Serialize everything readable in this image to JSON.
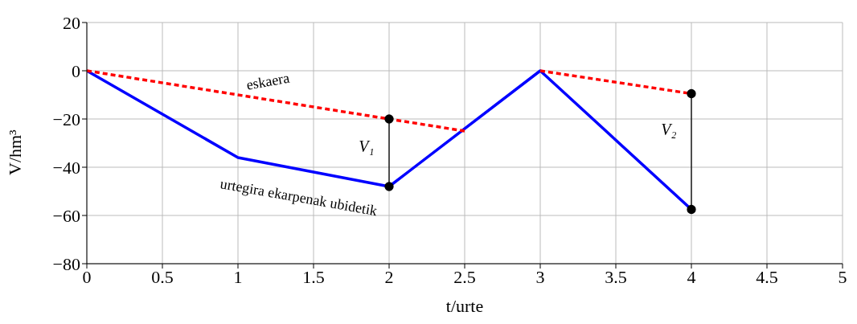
{
  "chart_data": {
    "type": "line",
    "xlabel": "t/urte",
    "ylabel": "V/hm³",
    "xlim": [
      0,
      5
    ],
    "ylim": [
      -80,
      20
    ],
    "xticks": [
      0,
      0.5,
      1,
      1.5,
      2,
      2.5,
      3,
      3.5,
      4,
      4.5,
      5
    ],
    "yticks": [
      -80,
      -60,
      -40,
      -20,
      0,
      20
    ],
    "grid": true,
    "series": [
      {
        "color": "#0000ff",
        "x": [
          0,
          1,
          2,
          3,
          4
        ],
        "values": [
          0,
          -36,
          -48,
          0,
          -57.5
        ],
        "line_style": "solid",
        "marker": "none"
      },
      {
        "color": "#ff0000",
        "x": [
          0,
          2.5
        ],
        "values": [
          0,
          -25
        ],
        "line_style": "dashed",
        "marker": "none"
      },
      {
        "color": "#ff0000",
        "x": [
          3,
          4
        ],
        "values": [
          0,
          -9.5
        ],
        "line_style": "dashed",
        "marker": "none"
      },
      {
        "color": "#000000",
        "x": [
          2,
          2
        ],
        "values": [
          -20,
          -48
        ],
        "line_style": "solid",
        "marker": "circle"
      },
      {
        "color": "#000000",
        "x": [
          4,
          4
        ],
        "values": [
          -9.5,
          -57.5
        ],
        "line_style": "solid",
        "marker": "circle"
      }
    ],
    "annotations": [
      "eskaera",
      "urtegira ekarpenak ubidetik",
      "V₁",
      "V₂"
    ]
  }
}
